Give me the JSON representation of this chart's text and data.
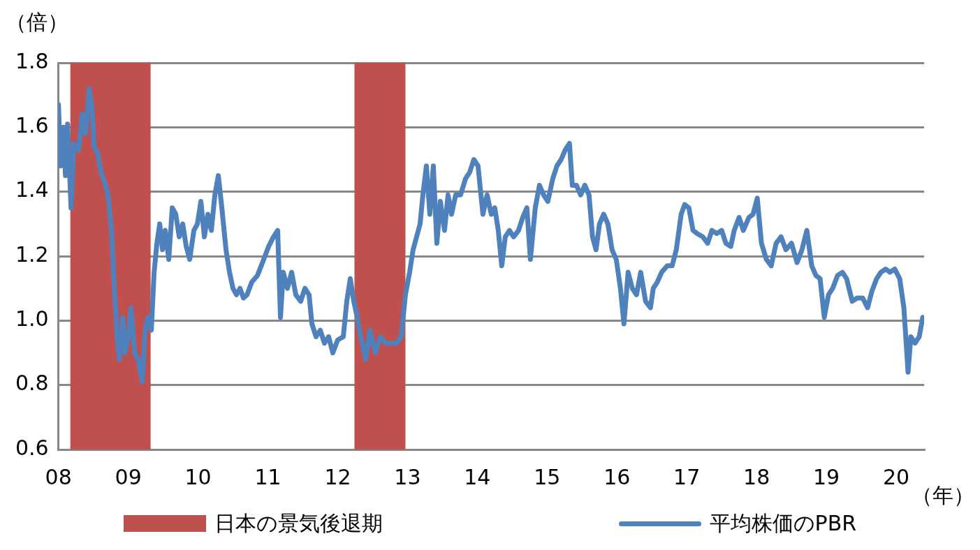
{
  "chart_data": {
    "type": "line",
    "xlabel": "（年）",
    "ylabel": "（倍）",
    "xlim": [
      2008,
      2020.4
    ],
    "ylim": [
      0.6,
      1.8
    ],
    "xticks": [
      {
        "value": 2008,
        "label": "08"
      },
      {
        "value": 2009,
        "label": "09"
      },
      {
        "value": 2010,
        "label": "10"
      },
      {
        "value": 2011,
        "label": "11"
      },
      {
        "value": 2012,
        "label": "12"
      },
      {
        "value": 2013,
        "label": "13"
      },
      {
        "value": 2014,
        "label": "14"
      },
      {
        "value": 2015,
        "label": "15"
      },
      {
        "value": 2016,
        "label": "16"
      },
      {
        "value": 2017,
        "label": "17"
      },
      {
        "value": 2018,
        "label": "18"
      },
      {
        "value": 2019,
        "label": "19"
      },
      {
        "value": 2020,
        "label": "20"
      }
    ],
    "yticks": [
      {
        "value": 0.6,
        "label": "0.6"
      },
      {
        "value": 0.8,
        "label": "0.8"
      },
      {
        "value": 1,
        "label": "1.0"
      },
      {
        "value": 1.2,
        "label": "1.2"
      },
      {
        "value": 1.4,
        "label": "1.4"
      },
      {
        "value": 1.6,
        "label": "1.6"
      },
      {
        "value": 1.8,
        "label": "1.8"
      }
    ],
    "grid": "y",
    "legend": "bottom",
    "marker": "none",
    "line_style": "solid",
    "bands": [
      {
        "axis": "x",
        "from": 2008.17,
        "to": 2009.32,
        "label": "日本の景気後退期",
        "color": "#c0504d"
      },
      {
        "axis": "x",
        "from": 2012.24,
        "to": 2012.97,
        "color": "#c0504d"
      }
    ],
    "series": [
      {
        "name": "平均株価のPBR",
        "color": "#4f81bd",
        "x": [
          2008,
          2008.03,
          2008.07,
          2008.1,
          2008.13,
          2008.18,
          2008.22,
          2008.29,
          2008.34,
          2008.39,
          2008.44,
          2008.48,
          2008.51,
          2008.56,
          2008.61,
          2008.66,
          2008.71,
          2008.76,
          2008.8,
          2008.84,
          2008.87,
          2008.92,
          2008.95,
          2009,
          2009.04,
          2009.09,
          2009.14,
          2009.2,
          2009.24,
          2009.28,
          2009.33,
          2009.37,
          2009.41,
          2009.45,
          2009.49,
          2009.53,
          2009.58,
          2009.63,
          2009.68,
          2009.73,
          2009.78,
          2009.83,
          2009.88,
          2009.94,
          2009.99,
          2010.04,
          2010.09,
          2010.14,
          2010.19,
          2010.24,
          2010.29,
          2010.34,
          2010.4,
          2010.45,
          2010.5,
          2010.55,
          2010.6,
          2010.65,
          2010.7,
          2010.77,
          2010.85,
          2010.94,
          2011.01,
          2011.08,
          2011.14,
          2011.18,
          2011.22,
          2011.28,
          2011.34,
          2011.4,
          2011.47,
          2011.53,
          2011.59,
          2011.63,
          2011.69,
          2011.75,
          2011.81,
          2011.87,
          2011.93,
          2012,
          2012.08,
          2012.13,
          2012.18,
          2012.23,
          2012.28,
          2012.33,
          2012.4,
          2012.46,
          2012.54,
          2012.61,
          2012.69,
          2012.77,
          2012.84,
          2012.91,
          2012.97,
          2013.03,
          2013.08,
          2013.13,
          2013.18,
          2013.22,
          2013.27,
          2013.32,
          2013.37,
          2013.42,
          2013.47,
          2013.53,
          2013.58,
          2013.63,
          2013.69,
          2013.76,
          2013.83,
          2013.89,
          2013.95,
          2014.01,
          2014.08,
          2014.14,
          2014.2,
          2014.25,
          2014.3,
          2014.35,
          2014.4,
          2014.46,
          2014.52,
          2014.59,
          2014.65,
          2014.71,
          2014.76,
          2014.83,
          2014.89,
          2014.95,
          2015.01,
          2015.08,
          2015.14,
          2015.2,
          2015.26,
          2015.32,
          2015.36,
          2015.42,
          2015.48,
          2015.54,
          2015.6,
          2015.65,
          2015.7,
          2015.75,
          2015.81,
          2015.87,
          2015.93,
          2015.99,
          2016.05,
          2016.1,
          2016.16,
          2016.22,
          2016.28,
          2016.34,
          2016.41,
          2016.48,
          2016.52,
          2016.58,
          2016.64,
          2016.72,
          2016.79,
          2016.85,
          2016.92,
          2016.97,
          2017.03,
          2017.09,
          2017.15,
          2017.23,
          2017.3,
          2017.36,
          2017.43,
          2017.5,
          2017.56,
          2017.63,
          2017.68,
          2017.75,
          2017.81,
          2017.89,
          2017.95,
          2018.01,
          2018.07,
          2018.14,
          2018.21,
          2018.28,
          2018.35,
          2018.42,
          2018.5,
          2018.58,
          2018.65,
          2018.72,
          2018.79,
          2018.85,
          2018.91,
          2018.97,
          2019.03,
          2019.09,
          2019.16,
          2019.23,
          2019.29,
          2019.37,
          2019.44,
          2019.52,
          2019.59,
          2019.65,
          2019.72,
          2019.78,
          2019.85,
          2019.91,
          2019.98,
          2020.05,
          2020.11,
          2020.17,
          2020.21,
          2020.27,
          2020.33,
          2020.38
        ],
        "values": [
          1.67,
          1.48,
          1.6,
          1.45,
          1.61,
          1.35,
          1.55,
          1.53,
          1.64,
          1.58,
          1.72,
          1.66,
          1.54,
          1.52,
          1.46,
          1.43,
          1.39,
          1.28,
          1.1,
          0.95,
          0.88,
          1.01,
          0.9,
          0.95,
          1.04,
          0.9,
          0.88,
          0.81,
          0.97,
          1.01,
          0.97,
          1.15,
          1.24,
          1.3,
          1.22,
          1.28,
          1.19,
          1.35,
          1.33,
          1.26,
          1.3,
          1.23,
          1.19,
          1.28,
          1.3,
          1.37,
          1.26,
          1.33,
          1.28,
          1.39,
          1.45,
          1.35,
          1.22,
          1.15,
          1.1,
          1.08,
          1.1,
          1.07,
          1.08,
          1.12,
          1.14,
          1.19,
          1.23,
          1.26,
          1.28,
          1.01,
          1.15,
          1.1,
          1.15,
          1.08,
          1.06,
          1.1,
          1.08,
          0.99,
          0.95,
          0.97,
          0.93,
          0.95,
          0.9,
          0.94,
          0.95,
          1.06,
          1.13,
          1.06,
          1.01,
          0.95,
          0.88,
          0.97,
          0.9,
          0.95,
          0.93,
          0.93,
          0.93,
          0.95,
          1.08,
          1.15,
          1.22,
          1.26,
          1.3,
          1.39,
          1.48,
          1.33,
          1.48,
          1.24,
          1.37,
          1.28,
          1.39,
          1.33,
          1.39,
          1.39,
          1.44,
          1.46,
          1.5,
          1.48,
          1.33,
          1.39,
          1.33,
          1.35,
          1.28,
          1.17,
          1.26,
          1.28,
          1.26,
          1.28,
          1.32,
          1.35,
          1.19,
          1.35,
          1.42,
          1.39,
          1.37,
          1.44,
          1.48,
          1.5,
          1.53,
          1.55,
          1.42,
          1.42,
          1.39,
          1.42,
          1.39,
          1.26,
          1.22,
          1.3,
          1.33,
          1.3,
          1.22,
          1.19,
          1.1,
          0.99,
          1.15,
          1.1,
          1.08,
          1.15,
          1.06,
          1.04,
          1.1,
          1.12,
          1.15,
          1.17,
          1.17,
          1.22,
          1.33,
          1.36,
          1.35,
          1.28,
          1.27,
          1.26,
          1.24,
          1.28,
          1.27,
          1.28,
          1.24,
          1.23,
          1.28,
          1.32,
          1.28,
          1.32,
          1.33,
          1.38,
          1.24,
          1.19,
          1.17,
          1.24,
          1.26,
          1.22,
          1.24,
          1.18,
          1.22,
          1.28,
          1.17,
          1.14,
          1.13,
          1.01,
          1.08,
          1.1,
          1.14,
          1.15,
          1.13,
          1.06,
          1.07,
          1.07,
          1.04,
          1.09,
          1.13,
          1.15,
          1.16,
          1.15,
          1.16,
          1.13,
          1.04,
          0.84,
          0.95,
          0.93,
          0.95,
          1.01
        ]
      }
    ]
  }
}
